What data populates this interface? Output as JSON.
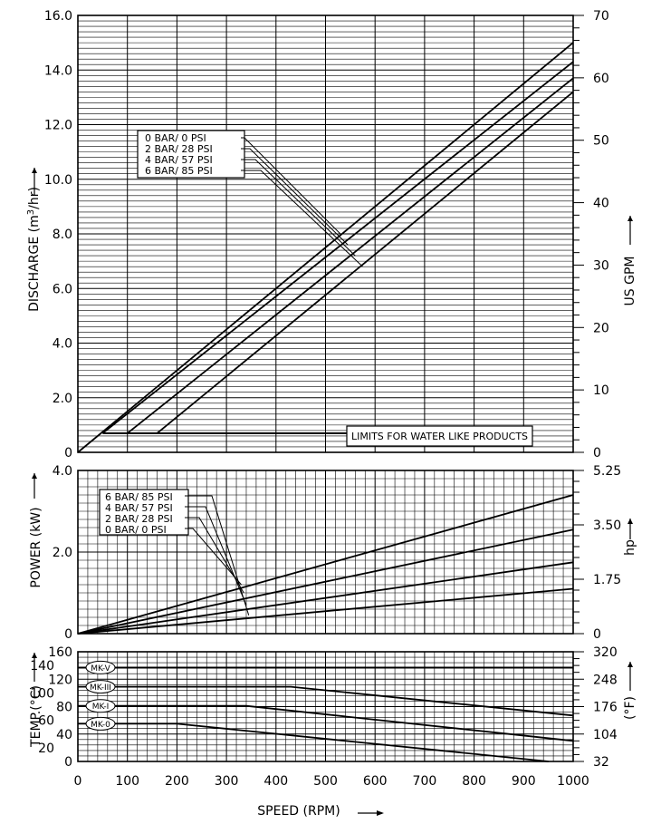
{
  "chart_data": [
    {
      "type": "line",
      "name_id": "discharge",
      "xlim": [
        0,
        1000
      ],
      "ylim": [
        0,
        16
      ],
      "ylabel_left": "DISCHARGE (m3/hr)",
      "ylabel_right": "US GPM",
      "yticks_left": [
        "0",
        "2.0",
        "4.0",
        "6.0",
        "8.0",
        "10.0",
        "12.0",
        "14.0",
        "16.0"
      ],
      "yticks_right": [
        "0",
        "10",
        "20",
        "30",
        "40",
        "50",
        "60",
        "70"
      ],
      "legend": [
        "0 BAR/  0 PSI",
        "2 BAR/ 28 PSI",
        "4 BAR/ 57 PSI",
        "6 BAR/ 85 PSI"
      ],
      "annotation": "LIMITS FOR WATER LIKE PRODUCTS",
      "limit_y": 0.7,
      "series": [
        {
          "name": "0 BAR/  0 PSI",
          "x": [
            0,
            1000
          ],
          "y": [
            0,
            15.0
          ]
        },
        {
          "name": "2 BAR/ 28 PSI",
          "x": [
            50,
            1000
          ],
          "y": [
            0.7,
            14.3
          ]
        },
        {
          "name": "4 BAR/ 57 PSI",
          "x": [
            100,
            1000
          ],
          "y": [
            0.7,
            13.7
          ]
        },
        {
          "name": "6 BAR/ 85 PSI",
          "x": [
            160,
            1000
          ],
          "y": [
            0.7,
            13.2
          ]
        }
      ]
    },
    {
      "type": "line",
      "name_id": "power",
      "xlim": [
        0,
        1000
      ],
      "ylim": [
        0,
        4.0
      ],
      "ylabel_left": "POWER (kW)",
      "ylabel_right": "hp",
      "yticks_left": [
        "0",
        "2.0",
        "4.0"
      ],
      "yticks_right": [
        "0",
        "1.75",
        "3.50",
        "5.25"
      ],
      "legend": [
        "6 BAR/ 85 PSI",
        "4 BAR/ 57 PSI",
        "2 BAR/ 28 PSI",
        "0 BAR/  0 PSI"
      ],
      "series": [
        {
          "name": "6 BAR/ 85 PSI",
          "x": [
            0,
            1000
          ],
          "y": [
            0,
            3.4
          ]
        },
        {
          "name": "4 BAR/ 57 PSI",
          "x": [
            0,
            1000
          ],
          "y": [
            0,
            2.55
          ]
        },
        {
          "name": "2 BAR/ 28 PSI",
          "x": [
            0,
            1000
          ],
          "y": [
            0,
            1.75
          ]
        },
        {
          "name": "0 BAR/  0 PSI",
          "x": [
            0,
            1000
          ],
          "y": [
            0,
            1.1
          ]
        }
      ]
    },
    {
      "type": "line",
      "name_id": "temperature",
      "xlim": [
        0,
        1000
      ],
      "ylim": [
        0,
        160
      ],
      "ylabel_left": "TEMP.(°C)",
      "ylabel_right": "(°F)",
      "xlabel": "SPEED (RPM)",
      "xticks": [
        "0",
        "100",
        "200",
        "300",
        "400",
        "500",
        "600",
        "700",
        "800",
        "900",
        "1000"
      ],
      "yticks_left": [
        "0",
        "40",
        "80",
        "120",
        "160"
      ],
      "yticks_mid": [
        "20",
        "60",
        "100",
        "140"
      ],
      "yticks_right": [
        "32",
        "104",
        "176",
        "248",
        "320"
      ],
      "series": [
        {
          "name": "MK-V",
          "x": [
            0,
            1000
          ],
          "y": [
            137,
            137
          ]
        },
        {
          "name": "MK-III",
          "x": [
            0,
            430,
            1000
          ],
          "y": [
            109,
            109,
            67
          ]
        },
        {
          "name": "MK-I",
          "x": [
            0,
            340,
            1000
          ],
          "y": [
            81,
            81,
            30
          ]
        },
        {
          "name": "MK-0",
          "x": [
            0,
            200,
            950
          ],
          "y": [
            55,
            55,
            0
          ]
        }
      ]
    }
  ]
}
